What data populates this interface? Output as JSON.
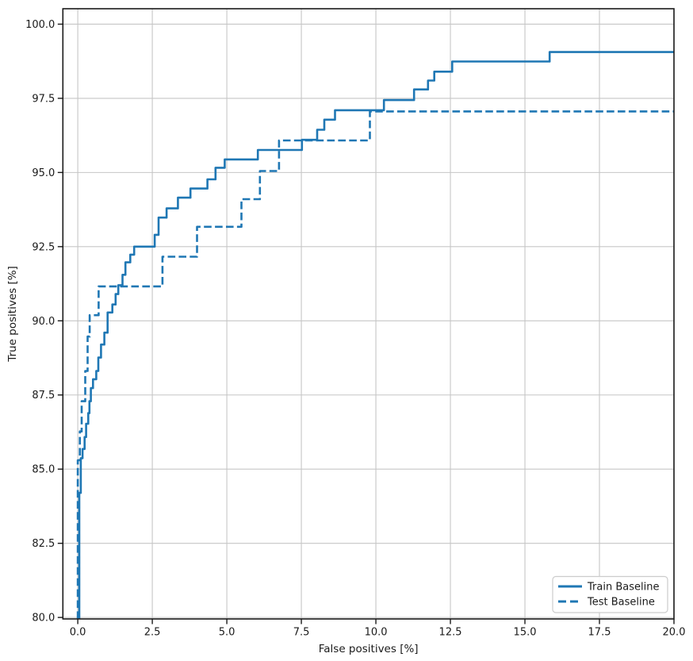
{
  "chart_data": {
    "type": "line",
    "subtype": "step-roc",
    "title": "",
    "xlabel": "False positives [%]",
    "ylabel": "True positives [%]",
    "xlim": [
      -0.5,
      20.0
    ],
    "ylim": [
      79.95,
      100.52
    ],
    "grid": true,
    "grid_color": "#c6c6c6",
    "spine_color": "#1a1a1a",
    "accent_color": "#1f77b4",
    "legend_position": "lower right",
    "xticks": [
      0.0,
      2.5,
      5.0,
      7.5,
      10.0,
      12.5,
      15.0,
      17.5,
      20.0
    ],
    "xtick_labels": [
      "0.0",
      "2.5",
      "5.0",
      "7.5",
      "10.0",
      "12.5",
      "15.0",
      "17.5",
      "20.0"
    ],
    "yticks": [
      80.0,
      82.5,
      85.0,
      87.5,
      90.0,
      92.5,
      95.0,
      97.5,
      100.0
    ],
    "ytick_labels": [
      "80.0",
      "82.5",
      "85.0",
      "87.5",
      "90.0",
      "92.5",
      "95.0",
      "97.5",
      "100.0"
    ],
    "series": [
      {
        "name": "Train Baseline",
        "line_style": "solid",
        "color": "#1f77b4",
        "points": [
          [
            0.05,
            79.95
          ],
          [
            0.05,
            84.2
          ],
          [
            0.1,
            84.2
          ],
          [
            0.1,
            85.37
          ],
          [
            0.16,
            85.37
          ],
          [
            0.16,
            85.68
          ],
          [
            0.23,
            85.68
          ],
          [
            0.23,
            86.08
          ],
          [
            0.28,
            86.08
          ],
          [
            0.28,
            86.53
          ],
          [
            0.35,
            86.53
          ],
          [
            0.35,
            86.89
          ],
          [
            0.39,
            86.89
          ],
          [
            0.39,
            87.29
          ],
          [
            0.44,
            87.29
          ],
          [
            0.44,
            87.73
          ],
          [
            0.51,
            87.73
          ],
          [
            0.51,
            88.03
          ],
          [
            0.62,
            88.03
          ],
          [
            0.62,
            88.31
          ],
          [
            0.69,
            88.31
          ],
          [
            0.69,
            88.76
          ],
          [
            0.78,
            88.76
          ],
          [
            0.78,
            89.2
          ],
          [
            0.89,
            89.2
          ],
          [
            0.89,
            89.6
          ],
          [
            1.0,
            89.6
          ],
          [
            1.0,
            90.28
          ],
          [
            1.16,
            90.28
          ],
          [
            1.16,
            90.55
          ],
          [
            1.27,
            90.55
          ],
          [
            1.27,
            90.9
          ],
          [
            1.36,
            90.9
          ],
          [
            1.36,
            91.2
          ],
          [
            1.5,
            91.2
          ],
          [
            1.5,
            91.55
          ],
          [
            1.6,
            91.55
          ],
          [
            1.6,
            91.97
          ],
          [
            1.76,
            91.97
          ],
          [
            1.76,
            92.23
          ],
          [
            1.89,
            92.23
          ],
          [
            1.89,
            92.5
          ],
          [
            2.58,
            92.5
          ],
          [
            2.58,
            92.9
          ],
          [
            2.71,
            92.9
          ],
          [
            2.71,
            93.48
          ],
          [
            2.98,
            93.48
          ],
          [
            2.98,
            93.79
          ],
          [
            3.36,
            93.79
          ],
          [
            3.36,
            94.15
          ],
          [
            3.78,
            94.15
          ],
          [
            3.78,
            94.46
          ],
          [
            4.35,
            94.46
          ],
          [
            4.35,
            94.77
          ],
          [
            4.62,
            94.77
          ],
          [
            4.62,
            95.16
          ],
          [
            4.93,
            95.16
          ],
          [
            4.93,
            95.44
          ],
          [
            6.04,
            95.44
          ],
          [
            6.04,
            95.76
          ],
          [
            7.52,
            95.76
          ],
          [
            7.52,
            96.1
          ],
          [
            8.03,
            96.1
          ],
          [
            8.03,
            96.44
          ],
          [
            8.27,
            96.44
          ],
          [
            8.27,
            96.78
          ],
          [
            8.63,
            96.78
          ],
          [
            8.63,
            97.1
          ],
          [
            10.27,
            97.1
          ],
          [
            10.27,
            97.44
          ],
          [
            11.28,
            97.44
          ],
          [
            11.28,
            97.8
          ],
          [
            11.75,
            97.8
          ],
          [
            11.75,
            98.1
          ],
          [
            11.96,
            98.1
          ],
          [
            11.96,
            98.4
          ],
          [
            12.56,
            98.4
          ],
          [
            12.56,
            98.74
          ],
          [
            15.83,
            98.74
          ],
          [
            15.83,
            99.06
          ],
          [
            20.0,
            99.06
          ]
        ]
      },
      {
        "name": "Test Baseline",
        "line_style": "dashed",
        "color": "#1f77b4",
        "points": [
          [
            0.0,
            79.95
          ],
          [
            0.0,
            85.3
          ],
          [
            0.07,
            85.3
          ],
          [
            0.07,
            86.27
          ],
          [
            0.13,
            86.27
          ],
          [
            0.13,
            87.29
          ],
          [
            0.25,
            87.29
          ],
          [
            0.25,
            88.31
          ],
          [
            0.33,
            88.31
          ],
          [
            0.33,
            89.47
          ],
          [
            0.4,
            89.47
          ],
          [
            0.4,
            90.19
          ],
          [
            0.7,
            90.19
          ],
          [
            0.7,
            91.16
          ],
          [
            2.84,
            91.16
          ],
          [
            2.84,
            92.16
          ],
          [
            4.0,
            92.16
          ],
          [
            4.0,
            93.17
          ],
          [
            5.49,
            93.17
          ],
          [
            5.49,
            94.1
          ],
          [
            6.11,
            94.1
          ],
          [
            6.11,
            95.05
          ],
          [
            6.75,
            95.05
          ],
          [
            6.75,
            96.08
          ],
          [
            9.8,
            96.08
          ],
          [
            9.8,
            97.06
          ],
          [
            20.0,
            97.06
          ]
        ]
      }
    ]
  }
}
